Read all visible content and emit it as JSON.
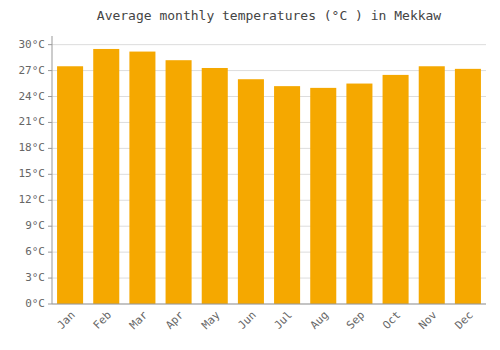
{
  "chart_data": {
    "type": "bar",
    "title": "Average monthly temperatures (°C ) in Mekkaw",
    "categories": [
      "Jan",
      "Feb",
      "Mar",
      "Apr",
      "May",
      "Jun",
      "Jul",
      "Aug",
      "Sep",
      "Oct",
      "Nov",
      "Dec"
    ],
    "values": [
      27.5,
      29.5,
      29.2,
      28.2,
      27.3,
      26.0,
      25.2,
      25.0,
      25.5,
      26.5,
      27.5,
      27.2
    ],
    "color": "#F5A800",
    "ylim": [
      0,
      31
    ],
    "yticks": [
      {
        "value": 0,
        "label": "0°C"
      },
      {
        "value": 3,
        "label": "3°C"
      },
      {
        "value": 6,
        "label": "6°C"
      },
      {
        "value": 9,
        "label": "9°C"
      },
      {
        "value": 12,
        "label": "12°C"
      },
      {
        "value": 15,
        "label": "15°C"
      },
      {
        "value": 18,
        "label": "18°C"
      },
      {
        "value": 21,
        "label": "21°C"
      },
      {
        "value": 24,
        "label": "24°C"
      },
      {
        "value": 27,
        "label": "27°C"
      },
      {
        "value": 30,
        "label": "30°C"
      }
    ],
    "grid": true
  }
}
